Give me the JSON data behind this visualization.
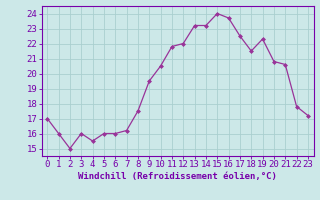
{
  "x": [
    0,
    1,
    2,
    3,
    4,
    5,
    6,
    7,
    8,
    9,
    10,
    11,
    12,
    13,
    14,
    15,
    16,
    17,
    18,
    19,
    20,
    21,
    22,
    23
  ],
  "y": [
    17.0,
    16.0,
    15.0,
    16.0,
    15.5,
    16.0,
    16.0,
    16.2,
    17.5,
    19.5,
    20.5,
    21.8,
    22.0,
    23.2,
    23.2,
    24.0,
    23.7,
    22.5,
    21.5,
    22.3,
    20.8,
    20.6,
    17.8,
    17.2
  ],
  "line_color": "#993399",
  "marker": "D",
  "marker_size": 2.0,
  "bg_color": "#cce8e8",
  "grid_color": "#aacfcf",
  "xlabel": "Windchill (Refroidissement éolien,°C)",
  "xlabel_fontsize": 6.5,
  "xtick_labels": [
    "0",
    "1",
    "2",
    "3",
    "4",
    "5",
    "6",
    "7",
    "8",
    "9",
    "10",
    "11",
    "12",
    "13",
    "14",
    "15",
    "16",
    "17",
    "18",
    "19",
    "20",
    "21",
    "22",
    "23"
  ],
  "ytick_vals": [
    15,
    16,
    17,
    18,
    19,
    20,
    21,
    22,
    23,
    24
  ],
  "ytick_labels": [
    "15",
    "16",
    "17",
    "18",
    "19",
    "20",
    "21",
    "22",
    "23",
    "24"
  ],
  "ylim": [
    14.5,
    24.5
  ],
  "xlim": [
    -0.5,
    23.5
  ],
  "tick_color": "#7700aa",
  "tick_fontsize": 6.5,
  "spine_color": "#7700aa",
  "linewidth": 0.9
}
